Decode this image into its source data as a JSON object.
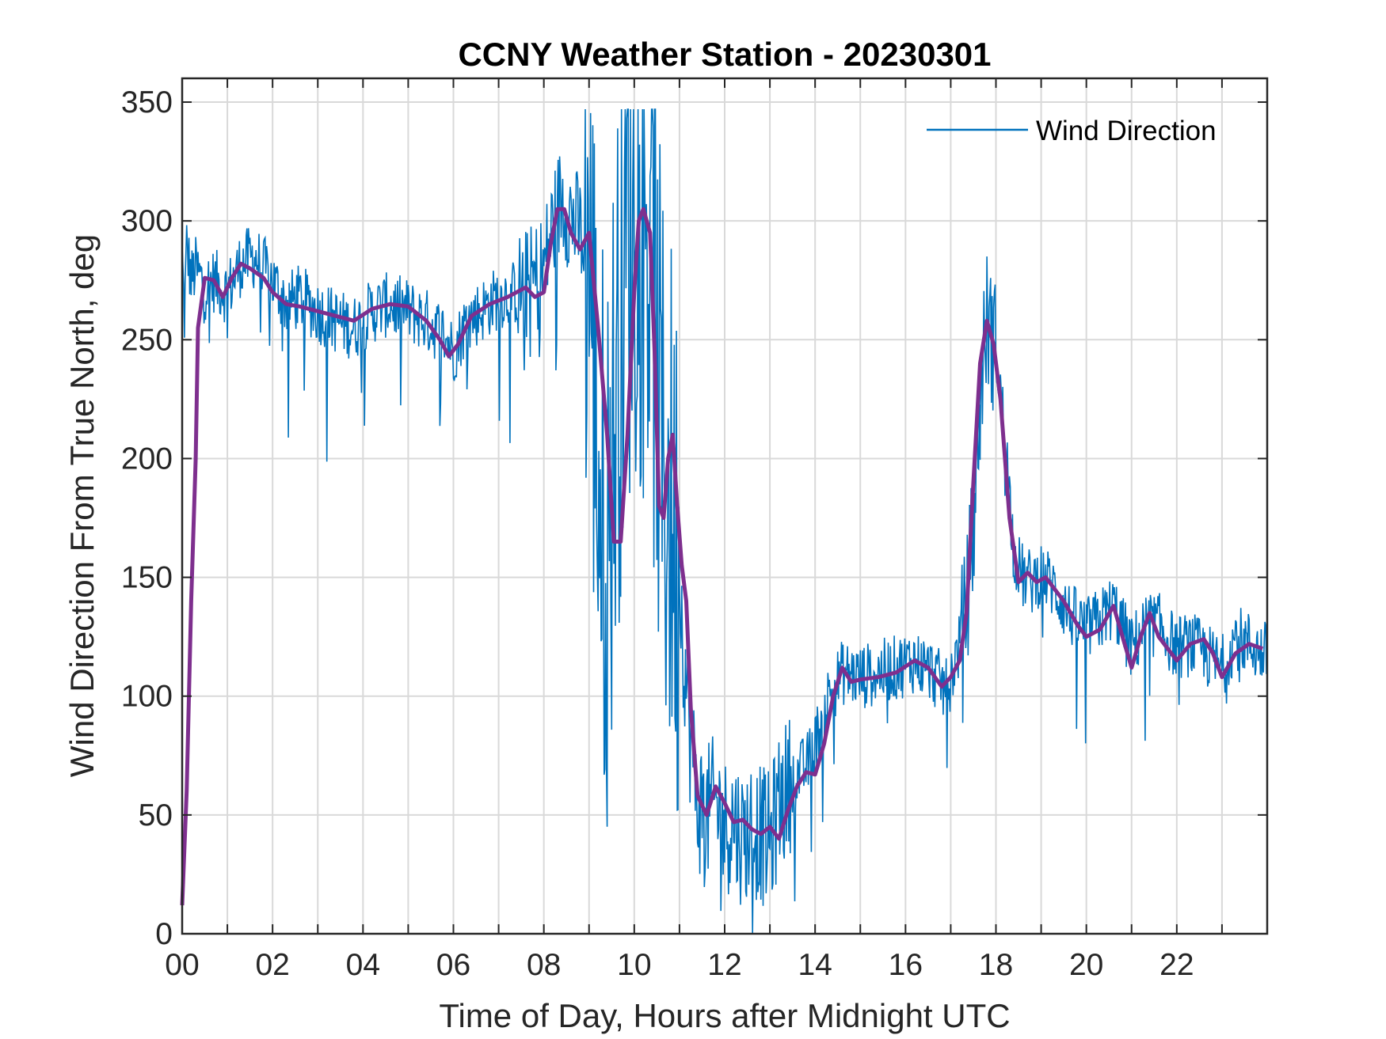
{
  "chart_data": {
    "type": "line",
    "title": "CCNY Weather Station - 20230301",
    "xlabel": "Time of Day, Hours after Midnight UTC",
    "ylabel": "Wind Direction From True North, deg",
    "xlim": [
      0,
      24
    ],
    "ylim": [
      0,
      360
    ],
    "x_ticks": [
      "00",
      "02",
      "04",
      "06",
      "08",
      "10",
      "12",
      "14",
      "16",
      "18",
      "20",
      "22"
    ],
    "x_tick_values": [
      0,
      2,
      4,
      6,
      8,
      10,
      12,
      14,
      16,
      18,
      20,
      22
    ],
    "y_ticks": [
      "0",
      "50",
      "100",
      "150",
      "200",
      "250",
      "300",
      "350"
    ],
    "y_tick_values": [
      0,
      50,
      100,
      150,
      200,
      250,
      300,
      350
    ],
    "grid": true,
    "legend": {
      "position": "top-right",
      "entries": [
        "Wind Direction"
      ]
    },
    "series": [
      {
        "name": "Wind Direction",
        "color": "#0072BD",
        "x": [
          0.0,
          0.05,
          0.1,
          0.2,
          0.3,
          0.5,
          0.7,
          1.0,
          1.3,
          1.6,
          2.0,
          2.3,
          2.6,
          3.0,
          3.4,
          3.8,
          4.2,
          4.6,
          5.0,
          5.4,
          5.8,
          6.0,
          6.3,
          6.6,
          7.0,
          7.4,
          7.8,
          8.0,
          8.2,
          8.4,
          8.6,
          8.8,
          9.0,
          9.2,
          9.4,
          9.6,
          9.8,
          10.0,
          10.2,
          10.4,
          10.6,
          10.8,
          11.0,
          11.2,
          11.4,
          11.6,
          11.8,
          12.0,
          12.2,
          12.4,
          12.6,
          12.8,
          13.0,
          13.2,
          13.5,
          13.8,
          14.0,
          14.3,
          14.6,
          15.0,
          15.4,
          15.8,
          16.2,
          16.6,
          16.9,
          17.1,
          17.3,
          17.5,
          17.7,
          17.8,
          18.0,
          18.2,
          18.4,
          18.6,
          18.8,
          19.0,
          19.3,
          19.6,
          20.0,
          20.3,
          20.6,
          21.0,
          21.3,
          21.6,
          22.0,
          22.3,
          22.6,
          23.0,
          23.3,
          23.6,
          23.9
        ],
        "y": [
          285,
          260,
          290,
          275,
          280,
          272,
          275,
          270,
          282,
          285,
          275,
          265,
          268,
          262,
          258,
          255,
          262,
          265,
          262,
          258,
          252,
          245,
          258,
          262,
          268,
          270,
          275,
          280,
          298,
          310,
          302,
          295,
          290,
          200,
          160,
          230,
          290,
          305,
          310,
          280,
          200,
          180,
          150,
          90,
          55,
          50,
          55,
          45,
          48,
          40,
          45,
          42,
          38,
          55,
          65,
          70,
          80,
          100,
          110,
          108,
          110,
          112,
          115,
          110,
          102,
          115,
          130,
          170,
          240,
          258,
          245,
          210,
          160,
          150,
          148,
          152,
          145,
          135,
          128,
          132,
          138,
          120,
          130,
          130,
          120,
          122,
          118,
          112,
          125,
          122,
          118
        ]
      }
    ],
    "smoothed": {
      "color": "#7E2F8E",
      "x": [
        0.0,
        0.1,
        0.2,
        0.3,
        0.35,
        0.5,
        0.7,
        0.9,
        1.1,
        1.3,
        1.5,
        1.8,
        2.0,
        2.3,
        2.6,
        3.0,
        3.4,
        3.8,
        4.2,
        4.6,
        5.0,
        5.4,
        5.7,
        5.9,
        6.1,
        6.4,
        6.8,
        7.2,
        7.6,
        7.8,
        8.0,
        8.15,
        8.3,
        8.45,
        8.6,
        8.8,
        9.0,
        9.2,
        9.4,
        9.55,
        9.7,
        9.85,
        10.0,
        10.1,
        10.2,
        10.35,
        10.45,
        10.55,
        10.65,
        10.75,
        10.85,
        10.95,
        11.05,
        11.15,
        11.25,
        11.4,
        11.6,
        11.8,
        12.0,
        12.2,
        12.4,
        12.6,
        12.8,
        13.0,
        13.2,
        13.4,
        13.6,
        13.8,
        14.0,
        14.2,
        14.4,
        14.6,
        14.8,
        15.0,
        15.4,
        15.8,
        16.2,
        16.5,
        16.8,
        17.0,
        17.2,
        17.35,
        17.5,
        17.65,
        17.8,
        17.95,
        18.1,
        18.3,
        18.5,
        18.7,
        18.9,
        19.1,
        19.3,
        19.5,
        19.8,
        20.0,
        20.3,
        20.6,
        20.8,
        21.0,
        21.2,
        21.4,
        21.6,
        21.8,
        22.0,
        22.3,
        22.6,
        22.8,
        23.0,
        23.3,
        23.6,
        23.9
      ],
      "y": [
        12,
        60,
        140,
        200,
        255,
        276,
        275,
        268,
        276,
        282,
        280,
        276,
        270,
        265,
        264,
        262,
        260,
        258,
        263,
        265,
        264,
        258,
        250,
        243,
        248,
        260,
        265,
        268,
        272,
        268,
        270,
        290,
        305,
        305,
        295,
        288,
        295,
        255,
        210,
        165,
        165,
        210,
        270,
        300,
        305,
        295,
        245,
        180,
        175,
        200,
        210,
        180,
        155,
        140,
        95,
        58,
        50,
        62,
        55,
        47,
        48,
        44,
        42,
        45,
        40,
        52,
        62,
        68,
        67,
        80,
        100,
        112,
        106,
        107,
        108,
        110,
        115,
        112,
        104,
        108,
        115,
        135,
        190,
        240,
        258,
        248,
        225,
        175,
        148,
        152,
        148,
        150,
        145,
        140,
        130,
        125,
        128,
        138,
        125,
        112,
        125,
        135,
        125,
        120,
        115,
        122,
        124,
        118,
        108,
        118,
        122,
        120
      ]
    }
  }
}
